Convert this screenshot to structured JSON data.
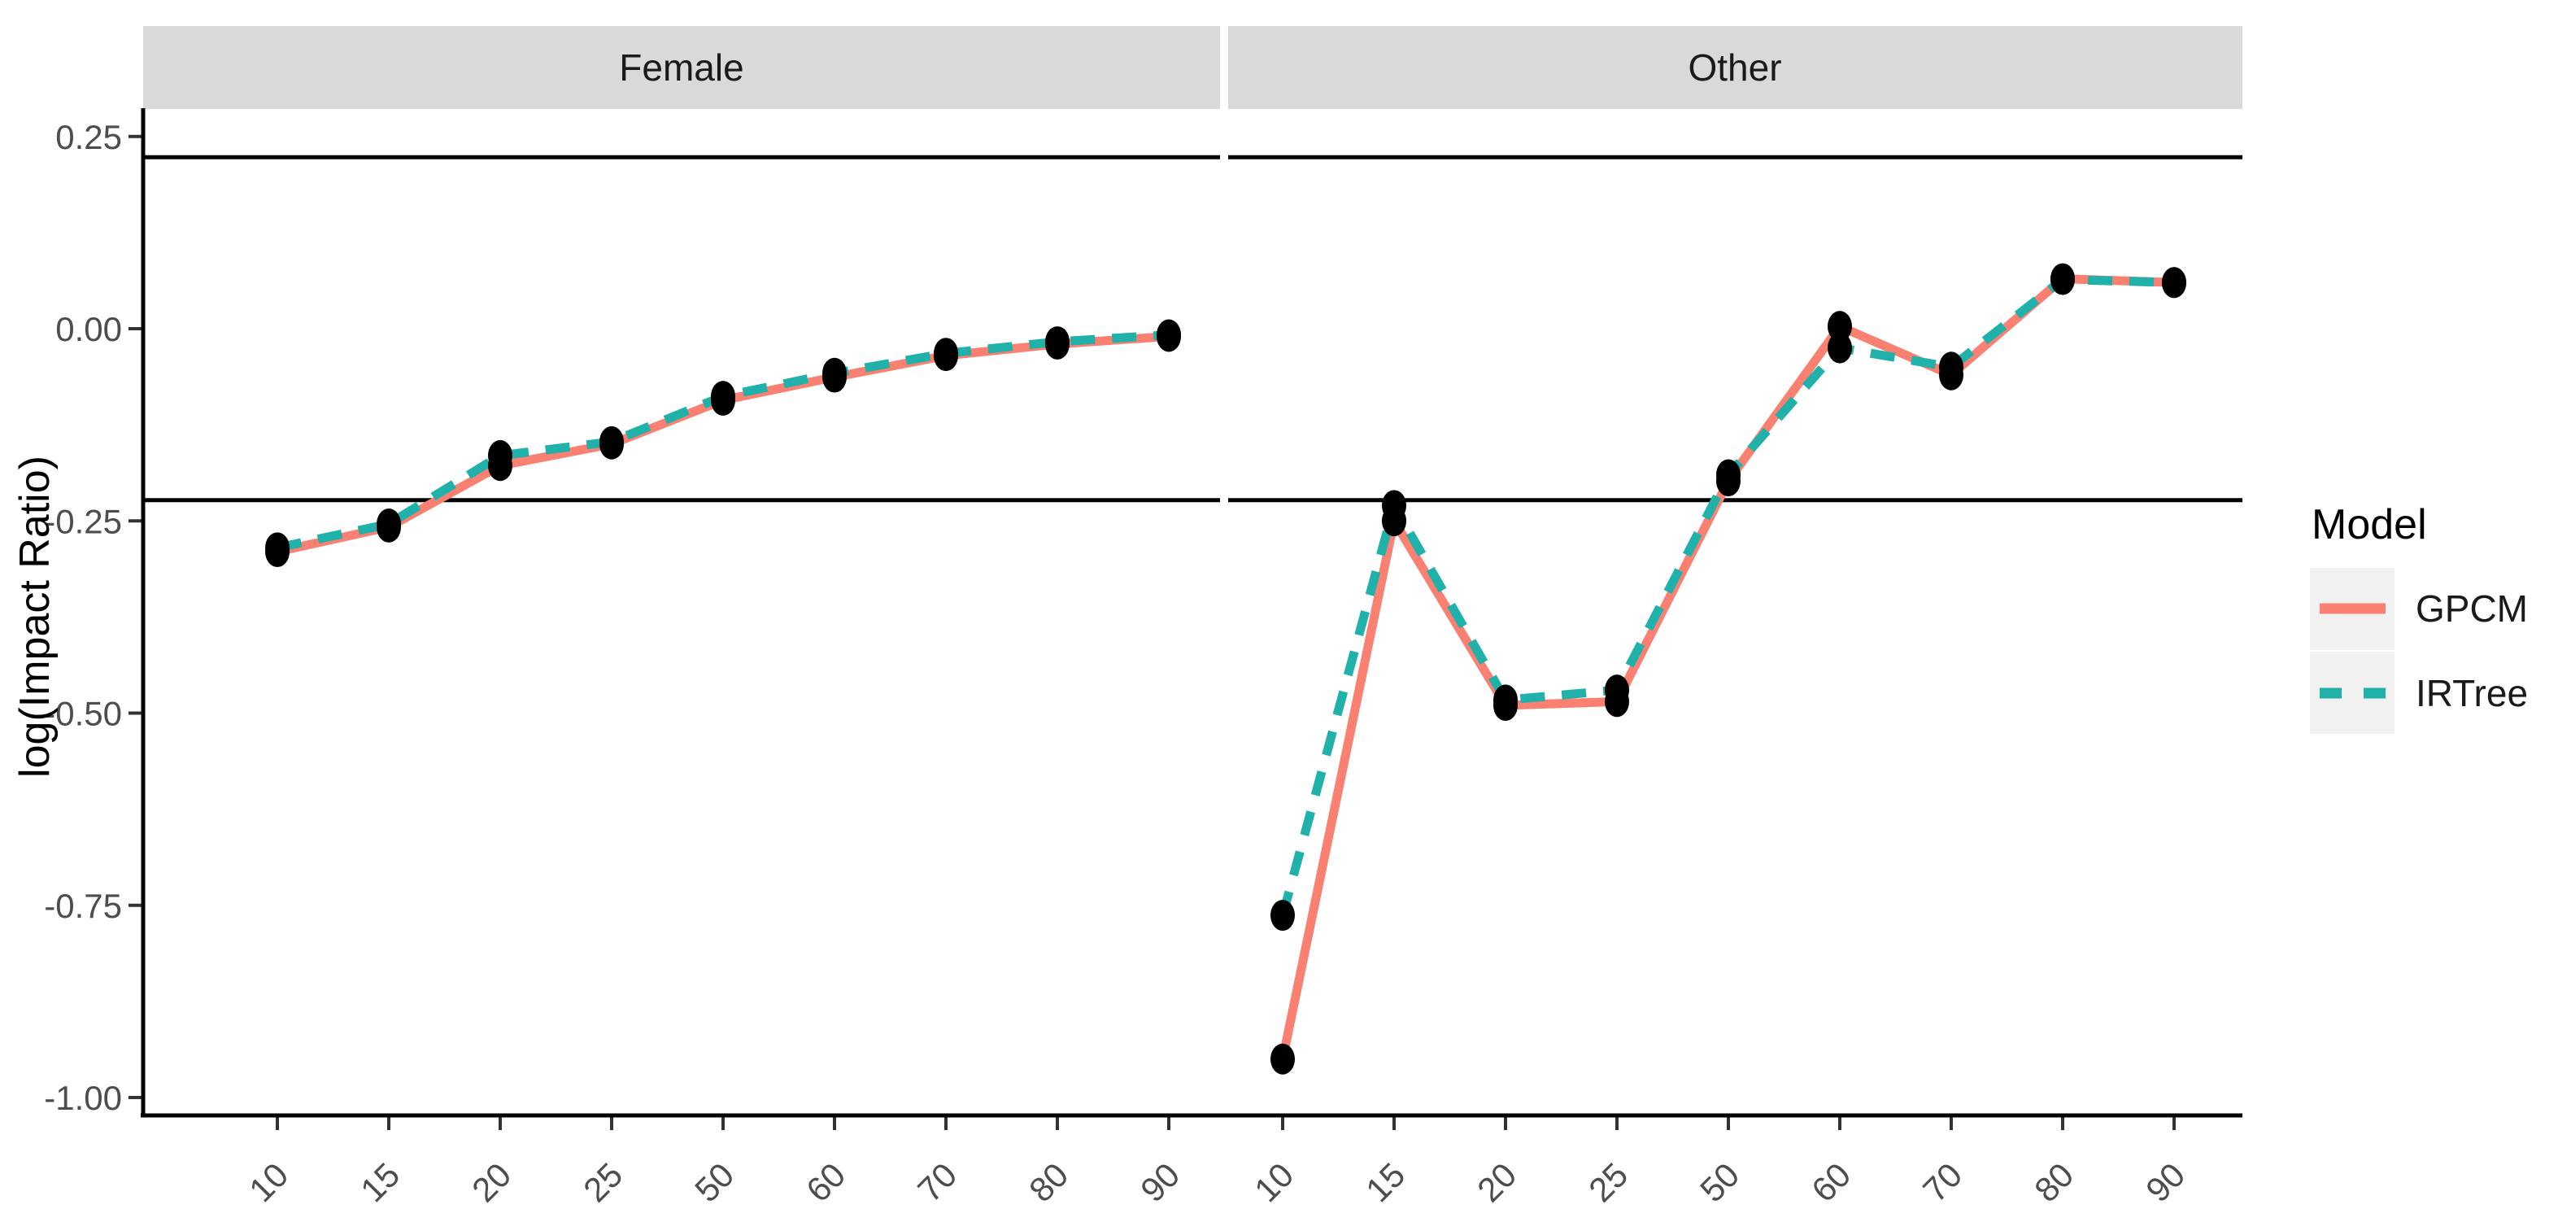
{
  "chart_data": {
    "type": "line",
    "title": "",
    "ylabel": "log(Impact Ratio)",
    "categories": [
      "10",
      "15",
      "20",
      "25",
      "50",
      "60",
      "70",
      "80",
      "90"
    ],
    "facets": [
      {
        "label": "Female",
        "series": [
          {
            "name": "GPCM",
            "values": [
              -0.29,
              -0.258,
              -0.178,
              -0.15,
              -0.093,
              -0.063,
              -0.035,
              -0.02,
              -0.01
            ]
          },
          {
            "name": "IRTree",
            "values": [
              -0.285,
              -0.254,
              -0.165,
              -0.147,
              -0.088,
              -0.058,
              -0.032,
              -0.017,
              -0.008
            ]
          }
        ]
      },
      {
        "label": "Other",
        "series": [
          {
            "name": "GPCM",
            "values": [
              -0.95,
              -0.25,
              -0.49,
              -0.485,
              -0.198,
              0.003,
              -0.06,
              0.065,
              0.06
            ]
          },
          {
            "name": "IRTree",
            "values": [
              -0.763,
              -0.23,
              -0.483,
              -0.47,
              -0.19,
              -0.025,
              -0.05,
              0.064,
              0.06
            ]
          }
        ]
      }
    ],
    "y_ticks": [
      "0.25",
      "0.00",
      "-0.25",
      "-0.50",
      "-0.75",
      "-1.00"
    ],
    "y_tick_values": [
      0.25,
      0.0,
      -0.25,
      -0.5,
      -0.75,
      -1.0
    ],
    "ylim": [
      -1.02,
      0.285
    ],
    "reference_lines": [
      0.223,
      -0.223
    ],
    "grid": false,
    "legend": {
      "title": "Model",
      "position": "right",
      "entries": [
        {
          "label": "GPCM",
          "color": "#FA8072",
          "dash": "solid"
        },
        {
          "label": "IRTree",
          "color": "#20B2AA",
          "dash": "dashed"
        }
      ]
    }
  },
  "colors": {
    "gpcm": "#FA8072",
    "irtree": "#20B2AA",
    "point": "#000000",
    "strip_bg": "#D9D9D9",
    "key_bg": "#F1F1F1",
    "axis_line": "#000000",
    "reference_line": "#000000",
    "tick_text": "#4D4D4D"
  }
}
